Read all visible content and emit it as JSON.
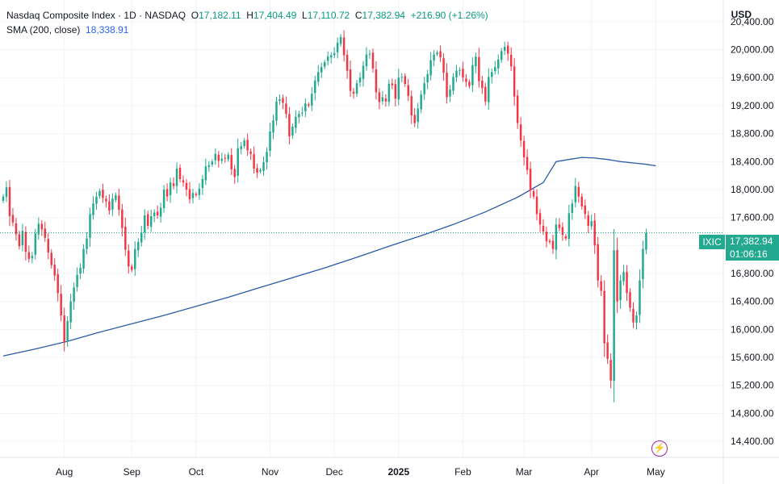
{
  "legend": {
    "title": "Nasdaq Composite Index · 1D · NASDAQ",
    "open_label": "O",
    "open": "17,182.11",
    "high_label": "H",
    "high": "17,404.49",
    "low_label": "L",
    "low": "17,110.72",
    "close_label": "C",
    "close": "17,382.94",
    "change": "+216.90 (+1.26%)",
    "sma_label": "SMA (200, close)",
    "sma_value": "18,338.91"
  },
  "price_scale": {
    "currency": "USD"
  },
  "last_price_tag": {
    "symbol": "IXIC",
    "price": "17,382.94",
    "countdown": "01:06:16"
  },
  "colors": {
    "up": "#22a98f",
    "down": "#f23645",
    "sma": "#2a5ba6",
    "grid": "#f0f3fa"
  },
  "icons": [
    "lightning-icon"
  ],
  "chart_data": {
    "type": "candlestick",
    "title": "Nasdaq Composite Index · 1D · NASDAQ",
    "y_ticks": [
      14400,
      14800,
      15200,
      15600,
      16000,
      16400,
      16800,
      17200,
      17600,
      18000,
      18400,
      18800,
      19200,
      19600,
      20000,
      20400
    ],
    "y_tick_labels": [
      "14,400.00",
      "14,800.00",
      "15,200.00",
      "15,600.00",
      "16,000.00",
      "16,400.00",
      "16,800.00",
      "17,200.00",
      "17,600.00",
      "18,000.00",
      "18,400.00",
      "18,800.00",
      "19,200.00",
      "19,600.00",
      "20,000.00",
      "20,400.00"
    ],
    "ylim": [
      14170,
      20710
    ],
    "x_labels": [
      {
        "label": "Aug",
        "index": 19
      },
      {
        "label": "Sep",
        "index": 40
      },
      {
        "label": "Oct",
        "index": 60
      },
      {
        "label": "Nov",
        "index": 83
      },
      {
        "label": "Dec",
        "index": 103
      },
      {
        "label": "2025",
        "index": 123
      },
      {
        "label": "Feb",
        "index": 143
      },
      {
        "label": "Mar",
        "index": 162
      },
      {
        "label": "Apr",
        "index": 183
      },
      {
        "label": "May",
        "index": 203
      }
    ],
    "x_range": [
      0,
      224
    ],
    "close_series": [
      17900,
      18030,
      17620,
      17530,
      17360,
      17190,
      17410,
      17110,
      17010,
      17050,
      17370,
      17510,
      17430,
      17310,
      17100,
      16920,
      16770,
      16520,
      16200,
      15810,
      16120,
      16400,
      16600,
      16780,
      16880,
      17150,
      17300,
      17650,
      17800,
      17900,
      17980,
      17880,
      17830,
      17700,
      17870,
      17920,
      17710,
      17450,
      17140,
      16900,
      16850,
      17150,
      17250,
      17380,
      17630,
      17480,
      17620,
      17670,
      17630,
      17740,
      18000,
      17900,
      18100,
      18050,
      18300,
      18150,
      18100,
      18000,
      17860,
      17950,
      17920,
      18010,
      18150,
      18330,
      18350,
      18400,
      18510,
      18410,
      18440,
      18450,
      18500,
      18290,
      18180,
      18590,
      18620,
      18700,
      18560,
      18510,
      18300,
      18240,
      18280,
      18390,
      18540,
      18830,
      18990,
      19260,
      19290,
      19240,
      19080,
      18760,
      18900,
      19040,
      19080,
      19100,
      19230,
      19200,
      19370,
      19560,
      19680,
      19750,
      19820,
      19900,
      19920,
      19950,
      20100,
      20180,
      19920,
      19700,
      19410,
      19370,
      19520,
      19600,
      19770,
      19930,
      19940,
      19730,
      19390,
      19250,
      19320,
      19260,
      19510,
      19490,
      19300,
      19600,
      19610,
      19510,
      19340,
      19060,
      18950,
      19160,
      19360,
      19520,
      19650,
      19850,
      19930,
      19960,
      19890,
      19670,
      19320,
      19430,
      19610,
      19700,
      19710,
      19600,
      19540,
      19480,
      19780,
      19900,
      19550,
      19450,
      19260,
      19610,
      19680,
      19750,
      19860,
      19980,
      20040,
      19940,
      19760,
      19330,
      18950,
      18700,
      18460,
      18280,
      17990,
      17900,
      17650,
      17500,
      17400,
      17260,
      17250,
      17150,
      17500,
      17450,
      17350,
      17300,
      17660,
      17800,
      18050,
      17900,
      17760,
      17650,
      17480,
      17550,
      17200,
      16700,
      16550,
      15800,
      15580,
      15270,
      17130,
      16400,
      16700,
      16820,
      16520,
      16310,
      16100,
      16200,
      16700,
      17150,
      17380
    ],
    "sma_series": [
      {
        "i": 0,
        "v": 15620
      },
      {
        "i": 10,
        "v": 15720
      },
      {
        "i": 20,
        "v": 15830
      },
      {
        "i": 30,
        "v": 15960
      },
      {
        "i": 40,
        "v": 16080
      },
      {
        "i": 50,
        "v": 16200
      },
      {
        "i": 60,
        "v": 16330
      },
      {
        "i": 70,
        "v": 16460
      },
      {
        "i": 80,
        "v": 16600
      },
      {
        "i": 90,
        "v": 16740
      },
      {
        "i": 100,
        "v": 16880
      },
      {
        "i": 110,
        "v": 17030
      },
      {
        "i": 120,
        "v": 17190
      },
      {
        "i": 130,
        "v": 17340
      },
      {
        "i": 140,
        "v": 17500
      },
      {
        "i": 150,
        "v": 17680
      },
      {
        "i": 160,
        "v": 17890
      },
      {
        "i": 168,
        "v": 18100
      },
      {
        "i": 172,
        "v": 18400
      },
      {
        "i": 176,
        "v": 18430
      },
      {
        "i": 180,
        "v": 18460
      },
      {
        "i": 184,
        "v": 18450
      },
      {
        "i": 188,
        "v": 18430
      },
      {
        "i": 192,
        "v": 18400
      },
      {
        "i": 196,
        "v": 18380
      },
      {
        "i": 200,
        "v": 18360
      },
      {
        "i": 203,
        "v": 18340
      }
    ],
    "last_close": 17382.94
  }
}
